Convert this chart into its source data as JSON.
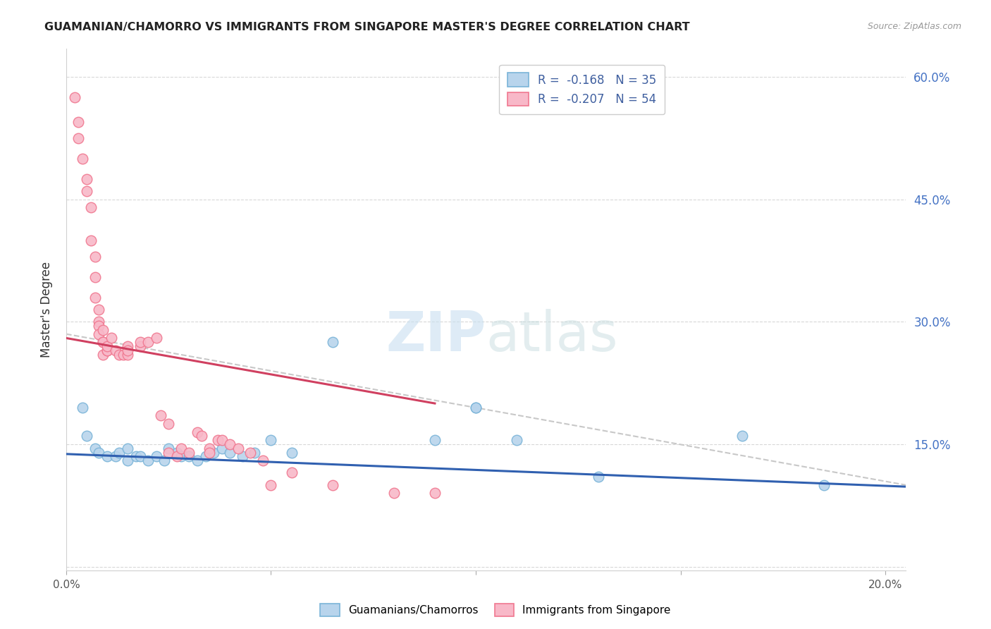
{
  "title": "GUAMANIAN/CHAMORRO VS IMMIGRANTS FROM SINGAPORE MASTER'S DEGREE CORRELATION CHART",
  "source": "Source: ZipAtlas.com",
  "ylabel": "Master's Degree",
  "watermark_zip": "ZIP",
  "watermark_atlas": "atlas",
  "legend_r_values": [
    "-0.168",
    "-0.207"
  ],
  "legend_n_values": [
    "35",
    "54"
  ],
  "blue_color": "#7ab4d8",
  "pink_color": "#f07890",
  "blue_fill": "#b8d4ec",
  "pink_fill": "#f8b8c8",
  "trendline_blue": "#3060b0",
  "trendline_pink": "#d04060",
  "trendline_dashed_color": "#c8c8c8",
  "xmin": 0.0,
  "xmax": 0.205,
  "ymin": -0.005,
  "ymax": 0.635,
  "yticks": [
    0.0,
    0.15,
    0.3,
    0.45,
    0.6
  ],
  "ytick_labels_right": [
    "",
    "15.0%",
    "30.0%",
    "45.0%",
    "60.0%"
  ],
  "xticks": [
    0.0,
    0.05,
    0.1,
    0.15,
    0.2
  ],
  "xtick_labels": [
    "0.0%",
    "",
    "",
    "",
    "20.0%"
  ],
  "blue_scatter_x": [
    0.004,
    0.005,
    0.007,
    0.008,
    0.01,
    0.012,
    0.013,
    0.015,
    0.015,
    0.017,
    0.018,
    0.02,
    0.022,
    0.024,
    0.025,
    0.027,
    0.028,
    0.03,
    0.032,
    0.034,
    0.036,
    0.038,
    0.04,
    0.043,
    0.046,
    0.05,
    0.055,
    0.065,
    0.09,
    0.1,
    0.1,
    0.11,
    0.13,
    0.165,
    0.185
  ],
  "blue_scatter_y": [
    0.195,
    0.16,
    0.145,
    0.14,
    0.135,
    0.135,
    0.14,
    0.13,
    0.145,
    0.135,
    0.135,
    0.13,
    0.135,
    0.13,
    0.145,
    0.14,
    0.135,
    0.135,
    0.13,
    0.135,
    0.14,
    0.145,
    0.14,
    0.135,
    0.14,
    0.155,
    0.14,
    0.275,
    0.155,
    0.195,
    0.195,
    0.155,
    0.11,
    0.16,
    0.1
  ],
  "pink_scatter_x": [
    0.002,
    0.003,
    0.003,
    0.004,
    0.005,
    0.005,
    0.006,
    0.006,
    0.007,
    0.007,
    0.007,
    0.008,
    0.008,
    0.008,
    0.008,
    0.009,
    0.009,
    0.009,
    0.009,
    0.01,
    0.01,
    0.01,
    0.011,
    0.012,
    0.013,
    0.014,
    0.015,
    0.015,
    0.015,
    0.018,
    0.018,
    0.02,
    0.022,
    0.023,
    0.025,
    0.025,
    0.027,
    0.028,
    0.03,
    0.032,
    0.033,
    0.035,
    0.035,
    0.037,
    0.038,
    0.04,
    0.042,
    0.045,
    0.048,
    0.05,
    0.055,
    0.065,
    0.08,
    0.09
  ],
  "pink_scatter_y": [
    0.575,
    0.545,
    0.525,
    0.5,
    0.475,
    0.46,
    0.44,
    0.4,
    0.38,
    0.355,
    0.33,
    0.315,
    0.3,
    0.295,
    0.285,
    0.29,
    0.275,
    0.26,
    0.275,
    0.265,
    0.265,
    0.27,
    0.28,
    0.265,
    0.26,
    0.26,
    0.27,
    0.26,
    0.265,
    0.27,
    0.275,
    0.275,
    0.28,
    0.185,
    0.175,
    0.14,
    0.135,
    0.145,
    0.14,
    0.165,
    0.16,
    0.145,
    0.14,
    0.155,
    0.155,
    0.15,
    0.145,
    0.14,
    0.13,
    0.1,
    0.115,
    0.1,
    0.09,
    0.09
  ],
  "blue_trend_x": [
    0.0,
    0.205
  ],
  "blue_trend_y": [
    0.138,
    0.098
  ],
  "pink_trend_x": [
    0.0,
    0.09
  ],
  "pink_trend_y": [
    0.28,
    0.2
  ],
  "dashed_trend_x": [
    0.0,
    0.205
  ],
  "dashed_trend_y": [
    0.285,
    0.1
  ],
  "grid_color": "#d8d8d8",
  "spine_color": "#d0d0d0",
  "bottom_legend_labels": [
    "Guamanians/Chamorros",
    "Immigrants from Singapore"
  ]
}
